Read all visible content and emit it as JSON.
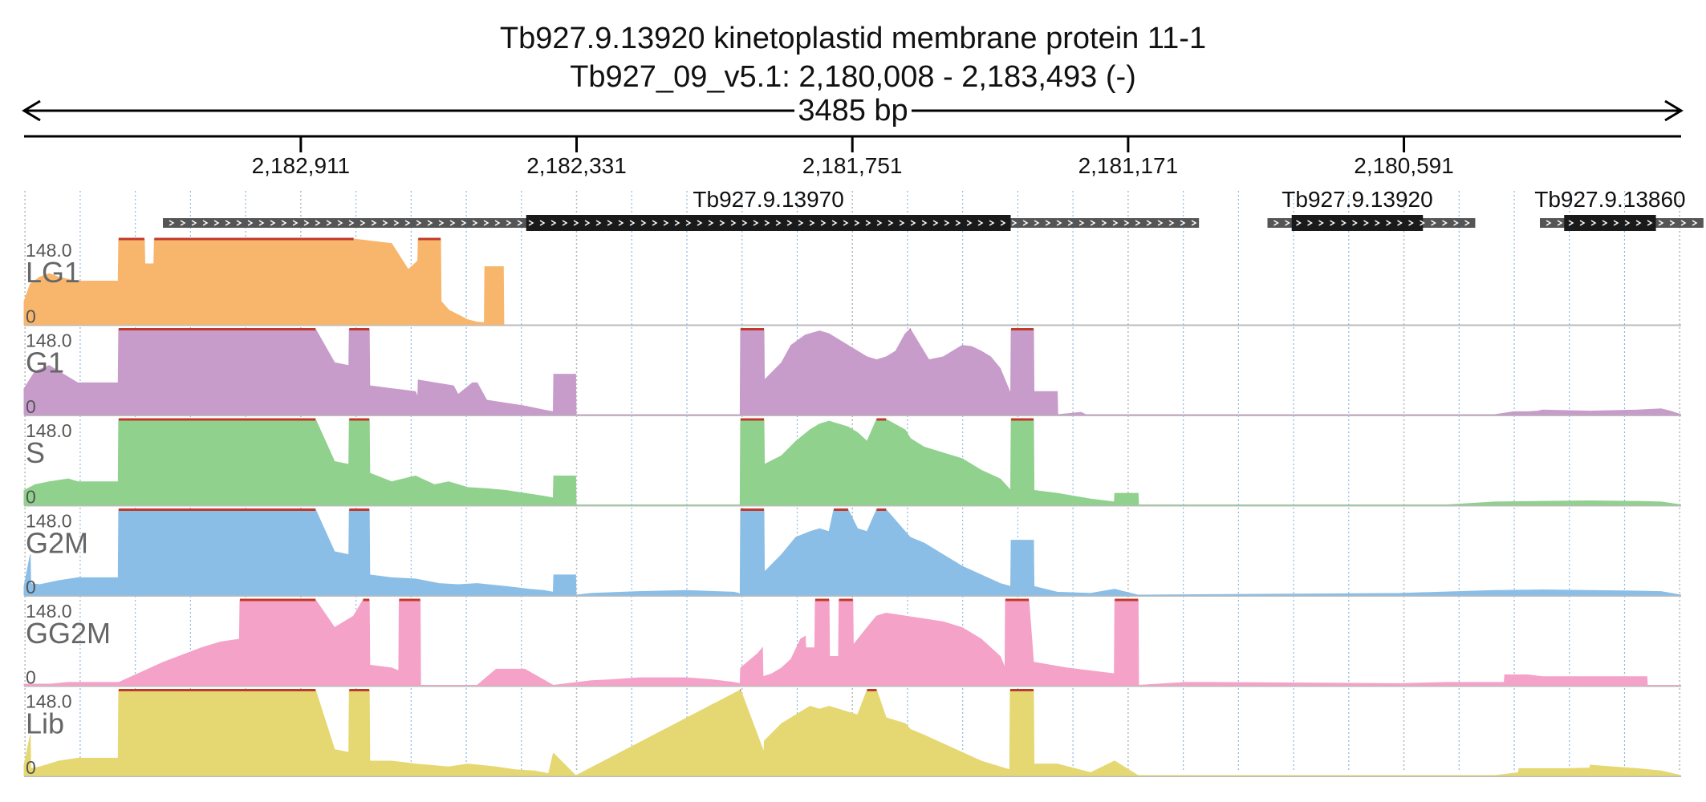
{
  "title": "Tb927.9.13920  kinetoplastid membrane protein 11-1",
  "subtitle": "Tb927_09_v5.1: 2,180,008 - 2,183,493 (-)",
  "chart_data": {
    "type": "area",
    "title": "Tb927.9.13920  kinetoplastid membrane protein 11-1",
    "subtitle": "Tb927_09_v5.1: 2,180,008 - 2,183,493 (-)",
    "span_label": "3485 bp",
    "region": {
      "start": 2180008,
      "end": 2183493,
      "strand": "-"
    },
    "x_ticks": [
      2182911,
      2182331,
      2181751,
      2181171,
      2180591
    ],
    "x_tick_labels": [
      "2,182,911",
      "2,182,331",
      "2,181,751",
      "2,181,171",
      "2,180,591"
    ],
    "genes": [
      {
        "name": "Tb927.9.13970",
        "start": 2183201,
        "end": 2181022,
        "cds_start": 2182437,
        "cds_end": 2181418
      },
      {
        "name": "Tb927.9.13920",
        "start": 2180878,
        "end": 2180441,
        "cds_start": 2180827,
        "cds_end": 2180551
      },
      {
        "name": "Tb927.9.13860",
        "start": 2180305,
        "end": 2179961,
        "cds_start": 2180254,
        "cds_end": 2180061
      }
    ],
    "ylim": [
      0,
      148.0
    ],
    "y_tick_labels": [
      "0",
      "148.0"
    ],
    "tracks": [
      {
        "name": "LG1",
        "color": "#f8b66c",
        "x": [
          2183493,
          2183480,
          2183460,
          2183440,
          2183420,
          2183400,
          2183380,
          2183295,
          2183294,
          2183240,
          2183239,
          2183220,
          2183219,
          2183100,
          2183000,
          2182900,
          2182800,
          2182720,
          2182685,
          2182665,
          2182664,
          2182617,
          2182616,
          2182600,
          2182560,
          2182540,
          2182525,
          2182524,
          2182485,
          2182484
        ],
        "values": [
          40,
          70,
          82,
          88,
          82,
          78,
          75,
          75,
          148,
          148,
          105,
          105,
          148,
          148,
          148,
          148,
          148,
          140,
          95,
          110,
          148,
          148,
          40,
          25,
          8,
          4,
          3,
          100,
          100,
          0
        ]
      },
      {
        "name": "G1",
        "color": "#c79ccb",
        "x": [
          2183493,
          2183470,
          2183440,
          2183410,
          2183380,
          2183295,
          2183294,
          2182880,
          2182840,
          2182810,
          2182809,
          2182767,
          2182766,
          2182720,
          2182670,
          2182665,
          2182664,
          2182590,
          2182580,
          2182550,
          2182540,
          2182520,
          2182440,
          2182400,
          2182380,
          2182379,
          2182333,
          2182332,
          2181987,
          2181986,
          2181937,
          2181936,
          2181900,
          2181880,
          2181850,
          2181820,
          2181800,
          2181780,
          2181760,
          2181740,
          2181720,
          2181700,
          2181680,
          2181660,
          2181640,
          2181630,
          2181629,
          2181590,
          2181560,
          2181540,
          2181520,
          2181500,
          2181480,
          2181460,
          2181440,
          2181420,
          2181418,
          2181417,
          2181370,
          2181369,
          2181320,
          2181319,
          2181270,
          2181260,
          2180400,
          2180360,
          2180330,
          2180310,
          2180300,
          2180200,
          2180100,
          2180050,
          2180030,
          2180008
        ],
        "values": [
          45,
          75,
          85,
          70,
          55,
          55,
          148,
          148,
          90,
          85,
          148,
          148,
          50,
          45,
          40,
          30,
          60,
          50,
          35,
          55,
          55,
          25,
          15,
          8,
          5,
          70,
          70,
          0,
          0,
          148,
          148,
          60,
          90,
          120,
          138,
          145,
          140,
          130,
          120,
          110,
          100,
          95,
          100,
          110,
          140,
          148,
          148,
          95,
          100,
          110,
          120,
          118,
          110,
          100,
          80,
          40,
          35,
          148,
          148,
          40,
          40,
          0,
          4,
          0,
          0,
          5,
          5,
          6,
          8,
          6,
          8,
          10,
          6,
          0
        ]
      },
      {
        "name": "S",
        "color": "#8fd18d",
        "x": [
          2183493,
          2183470,
          2183440,
          2183400,
          2183380,
          2183295,
          2183294,
          2182880,
          2182840,
          2182810,
          2182809,
          2182767,
          2182766,
          2182720,
          2182670,
          2182630,
          2182600,
          2182560,
          2182520,
          2182480,
          2182440,
          2182400,
          2182380,
          2182379,
          2182333,
          2182332,
          2181987,
          2181986,
          2181937,
          2181936,
          2181900,
          2181870,
          2181840,
          2181820,
          2181800,
          2181760,
          2181740,
          2181720,
          2181700,
          2181680,
          2181640,
          2181629,
          2181600,
          2181560,
          2181520,
          2181480,
          2181440,
          2181418,
          2181417,
          2181370,
          2181369,
          2181320,
          2181250,
          2181200,
          2181199,
          2181150,
          2181149,
          2180500,
          2180400,
          2180300,
          2180200,
          2180100,
          2180050,
          2180008
        ],
        "values": [
          25,
          35,
          40,
          45,
          40,
          40,
          148,
          148,
          75,
          70,
          148,
          148,
          55,
          40,
          50,
          35,
          40,
          30,
          28,
          25,
          20,
          15,
          12,
          50,
          50,
          0,
          0,
          148,
          148,
          70,
          85,
          110,
          130,
          140,
          145,
          135,
          125,
          110,
          148,
          148,
          130,
          115,
          100,
          90,
          80,
          60,
          45,
          25,
          148,
          148,
          25,
          20,
          10,
          5,
          20,
          20,
          0,
          0,
          5,
          6,
          7,
          6,
          5,
          0
        ]
      },
      {
        "name": "G2M",
        "color": "#8bbee6",
        "x": [
          2183493,
          2183480,
          2183479,
          2183460,
          2183420,
          2183380,
          2183295,
          2183294,
          2182880,
          2182840,
          2182810,
          2182809,
          2182767,
          2182766,
          2182720,
          2182670,
          2182620,
          2182580,
          2182540,
          2182480,
          2182430,
          2182400,
          2182380,
          2182379,
          2182333,
          2182332,
          2182300,
          2182200,
          2182100,
          2182000,
          2181990,
          2181987,
          2181986,
          2181937,
          2181936,
          2181900,
          2181870,
          2181840,
          2181820,
          2181800,
          2181790,
          2181760,
          2181740,
          2181720,
          2181700,
          2181680,
          2181640,
          2181629,
          2181600,
          2181560,
          2181520,
          2181480,
          2181440,
          2181418,
          2181417,
          2181370,
          2181369,
          2181320,
          2181250,
          2181200,
          2181199,
          2181150,
          2181149,
          2180600,
          2180400,
          2180300,
          2180200,
          2180100,
          2180050,
          2180008
        ],
        "values": [
          15,
          70,
          20,
          18,
          25,
          30,
          30,
          148,
          148,
          75,
          70,
          148,
          148,
          35,
          30,
          28,
          20,
          18,
          20,
          15,
          10,
          8,
          5,
          35,
          35,
          0,
          3,
          6,
          8,
          5,
          3,
          0,
          148,
          148,
          40,
          70,
          100,
          110,
          115,
          110,
          148,
          148,
          115,
          110,
          148,
          148,
          110,
          100,
          90,
          70,
          50,
          35,
          20,
          15,
          95,
          95,
          15,
          5,
          3,
          10,
          10,
          0,
          0,
          3,
          8,
          9,
          8,
          7,
          6,
          0
        ]
      },
      {
        "name": "GG2M",
        "color": "#f4a2c8",
        "x": [
          2183493,
          2183440,
          2183400,
          2183380,
          2183295,
          2183294,
          2183200,
          2183120,
          2183080,
          2183040,
          2183039,
          2183000,
          2182999,
          2182880,
          2182840,
          2182800,
          2182780,
          2182767,
          2182766,
          2182720,
          2182705,
          2182704,
          2182660,
          2182659,
          2182540,
          2182500,
          2182440,
          2182380,
          2182300,
          2182250,
          2182200,
          2182100,
          2182050,
          2182000,
          2181987,
          2181986,
          2181950,
          2181940,
          2181939,
          2181920,
          2181900,
          2181880,
          2181860,
          2181850,
          2181849,
          2181830,
          2181829,
          2181800,
          2181799,
          2181780,
          2181779,
          2181750,
          2181749,
          2181720,
          2181700,
          2181680,
          2181640,
          2181600,
          2181560,
          2181520,
          2181480,
          2181440,
          2181430,
          2181429,
          2181380,
          2181370,
          2181369,
          2181300,
          2181250,
          2181200,
          2181199,
          2181150,
          2181149,
          2181050,
          2181000,
          2180600,
          2180500,
          2180400,
          2180380,
          2180379,
          2180330,
          2180300,
          2180200,
          2180080,
          2180079,
          2180008
        ],
        "values": [
          2,
          2,
          5,
          5,
          5,
          5,
          40,
          65,
          75,
          80,
          148,
          148,
          148,
          148,
          100,
          120,
          148,
          148,
          35,
          30,
          25,
          148,
          148,
          0,
          0,
          28,
          28,
          0,
          8,
          10,
          13,
          13,
          10,
          5,
          3,
          30,
          55,
          65,
          15,
          20,
          30,
          45,
          80,
          85,
          65,
          65,
          148,
          148,
          50,
          50,
          148,
          148,
          70,
          100,
          120,
          125,
          120,
          115,
          110,
          100,
          80,
          50,
          30,
          148,
          148,
          40,
          40,
          30,
          25,
          20,
          148,
          148,
          0,
          5,
          5,
          3,
          5,
          5,
          5,
          18,
          18,
          15,
          15,
          15,
          0,
          0
        ]
      },
      {
        "name": "Lib",
        "color": "#e5d873",
        "x": [
          2183493,
          2183480,
          2183479,
          2183460,
          2183420,
          2183380,
          2183295,
          2183294,
          2182880,
          2182840,
          2182810,
          2182809,
          2182767,
          2182766,
          2182720,
          2182670,
          2182600,
          2182560,
          2182500,
          2182460,
          2182420,
          2182400,
          2182390,
          2182380,
          2182379,
          2182333,
          2182332,
          2181987,
          2181986,
          2181937,
          2181936,
          2181900,
          2181860,
          2181840,
          2181820,
          2181800,
          2181760,
          2181740,
          2181720,
          2181700,
          2181680,
          2181640,
          2181629,
          2181600,
          2181560,
          2181520,
          2181480,
          2181440,
          2181420,
          2181419,
          2181370,
          2181369,
          2181320,
          2181250,
          2181200,
          2181199,
          2181150,
          2181149,
          2180400,
          2180350,
          2180349,
          2180250,
          2180200,
          2180199,
          2180150,
          2180100,
          2180050,
          2180008
        ],
        "values": [
          18,
          70,
          12,
          15,
          25,
          30,
          30,
          148,
          148,
          45,
          40,
          148,
          148,
          25,
          25,
          20,
          15,
          20,
          15,
          10,
          8,
          5,
          3,
          38,
          38,
          0,
          0,
          148,
          148,
          40,
          60,
          90,
          110,
          120,
          115,
          120,
          110,
          105,
          148,
          148,
          100,
          90,
          80,
          70,
          55,
          40,
          25,
          15,
          10,
          148,
          148,
          20,
          20,
          5,
          25,
          25,
          0,
          0,
          0,
          5,
          12,
          12,
          13,
          18,
          15,
          12,
          8,
          0
        ]
      }
    ]
  }
}
